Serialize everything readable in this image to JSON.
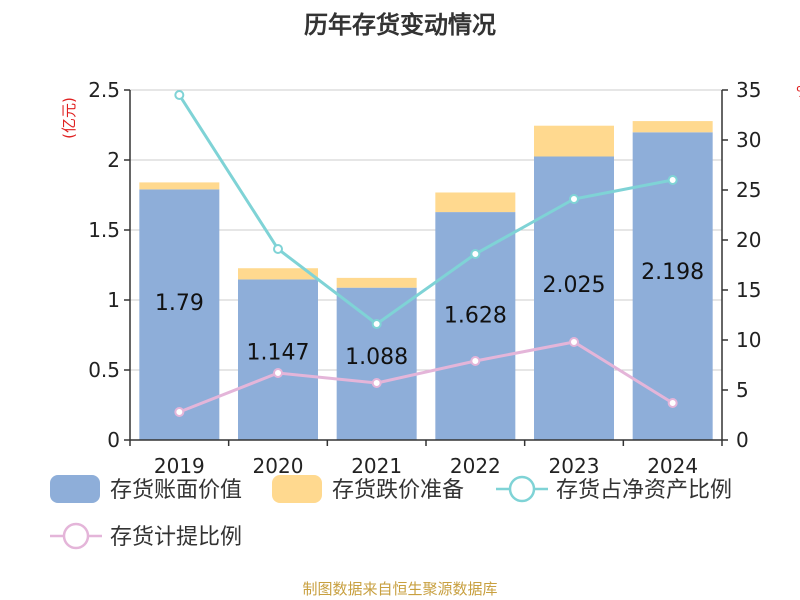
{
  "chart_data": {
    "type": "bar",
    "title": "历年存货变动情况",
    "left_unit": "(亿元)",
    "right_unit": "%",
    "categories": [
      "2019",
      "2020",
      "2021",
      "2022",
      "2023",
      "2024"
    ],
    "left_ylim": [
      0,
      2.5
    ],
    "left_ticks": [
      "0",
      "0.5",
      "1",
      "1.5",
      "2",
      "2.5"
    ],
    "right_ylim": [
      0,
      35
    ],
    "right_ticks": [
      "0",
      "5",
      "10",
      "15",
      "20",
      "25",
      "30",
      "35"
    ],
    "grid": true,
    "legend_position": "bottom",
    "series": [
      {
        "name": "存货账面价值",
        "kind": "bar",
        "stack": "s",
        "color": "#8eaed9",
        "values": [
          1.79,
          1.147,
          1.088,
          1.628,
          2.025,
          2.198
        ],
        "labels": [
          "1.79",
          "1.147",
          "1.088",
          "1.628",
          "2.025",
          "2.198"
        ]
      },
      {
        "name": "存货跌价准备",
        "kind": "bar",
        "stack": "s",
        "color": "#ffd98f",
        "values": [
          0.05,
          0.08,
          0.07,
          0.14,
          0.22,
          0.08
        ]
      },
      {
        "name": "存货占净资产比例",
        "kind": "line",
        "axis": "right",
        "color": "#7fd3d6",
        "values": [
          34.5,
          19.1,
          11.6,
          18.6,
          24.1,
          26.0
        ]
      },
      {
        "name": "存货计提比例",
        "kind": "line",
        "axis": "right",
        "color": "#e4b5d9",
        "values": [
          2.8,
          6.7,
          5.7,
          7.9,
          9.8,
          3.7
        ]
      }
    ]
  },
  "footer": {
    "source": "制图数据来自恒生聚源数据库"
  }
}
